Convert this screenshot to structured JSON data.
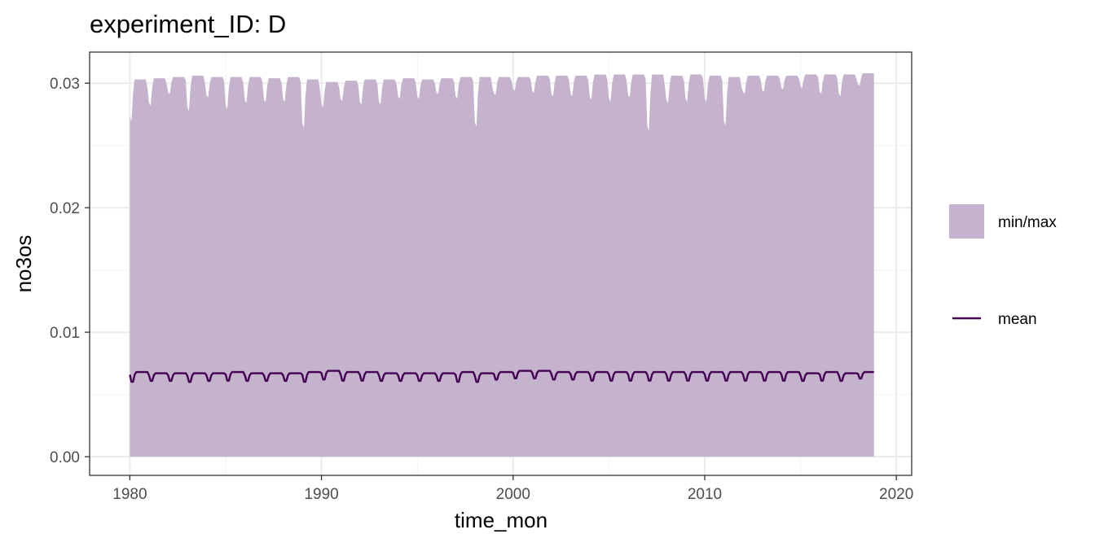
{
  "chart_data": {
    "type": "area",
    "title": "experiment_ID: D",
    "xlabel": "time_mon",
    "ylabel": "no3os",
    "xlim": [
      1977.9,
      2020.8
    ],
    "ylim": [
      -0.0015,
      0.0325
    ],
    "x_ticks": [
      1980,
      1990,
      2000,
      2010,
      2020
    ],
    "x_tick_labels": [
      "1980",
      "1990",
      "2000",
      "2010",
      "2020"
    ],
    "y_ticks": [
      0.0,
      0.01,
      0.02,
      0.03
    ],
    "y_tick_labels": [
      "0.00",
      "0.01",
      "0.02",
      "0.03"
    ],
    "grid": true,
    "legend_position": "right",
    "x_start": 1980.0,
    "x_end": 2018.9,
    "series": [
      {
        "name": "min/max",
        "kind": "ribbon",
        "color": "#c5b2cd",
        "ymin": 0.0,
        "ymax_annual": [
          [
            1980,
            0.0303,
            0.0266
          ],
          [
            1981,
            0.0304,
            0.028
          ],
          [
            1982,
            0.0305,
            0.029
          ],
          [
            1983,
            0.0306,
            0.0275
          ],
          [
            1984,
            0.0305,
            0.0287
          ],
          [
            1985,
            0.0305,
            0.0277
          ],
          [
            1986,
            0.0305,
            0.0282
          ],
          [
            1987,
            0.0304,
            0.0283
          ],
          [
            1988,
            0.0305,
            0.0283
          ],
          [
            1989,
            0.0303,
            0.026
          ],
          [
            1990,
            0.0301,
            0.0279
          ],
          [
            1991,
            0.0302,
            0.0284
          ],
          [
            1992,
            0.0303,
            0.0281
          ],
          [
            1993,
            0.0303,
            0.0281
          ],
          [
            1994,
            0.0304,
            0.0286
          ],
          [
            1995,
            0.0303,
            0.0286
          ],
          [
            1996,
            0.0304,
            0.029
          ],
          [
            1997,
            0.0305,
            0.0286
          ],
          [
            1998,
            0.0305,
            0.0261
          ],
          [
            1999,
            0.0305,
            0.0289
          ],
          [
            2000,
            0.0305,
            0.0293
          ],
          [
            2001,
            0.0306,
            0.0291
          ],
          [
            2002,
            0.0306,
            0.0288
          ],
          [
            2003,
            0.0306,
            0.0288
          ],
          [
            2004,
            0.0307,
            0.0285
          ],
          [
            2005,
            0.0307,
            0.0283
          ],
          [
            2006,
            0.0307,
            0.0287
          ],
          [
            2007,
            0.0307,
            0.0257
          ],
          [
            2008,
            0.0306,
            0.0282
          ],
          [
            2009,
            0.0307,
            0.0283
          ],
          [
            2010,
            0.0306,
            0.0283
          ],
          [
            2011,
            0.0305,
            0.0262
          ],
          [
            2012,
            0.0306,
            0.029
          ],
          [
            2013,
            0.0306,
            0.0292
          ],
          [
            2014,
            0.0306,
            0.0294
          ],
          [
            2015,
            0.0307,
            0.0295
          ],
          [
            2016,
            0.0307,
            0.029
          ],
          [
            2017,
            0.0307,
            0.0288
          ],
          [
            2018,
            0.0308,
            0.0297
          ]
        ]
      },
      {
        "name": "mean",
        "kind": "line",
        "color": "#440154",
        "mean_annual": [
          [
            1980,
            0.0068,
            0.0059
          ],
          [
            1981,
            0.0067,
            0.006
          ],
          [
            1982,
            0.0067,
            0.006
          ],
          [
            1983,
            0.0067,
            0.0059
          ],
          [
            1984,
            0.0067,
            0.006
          ],
          [
            1985,
            0.0068,
            0.006
          ],
          [
            1986,
            0.0067,
            0.006
          ],
          [
            1987,
            0.0067,
            0.006
          ],
          [
            1988,
            0.0067,
            0.006
          ],
          [
            1989,
            0.0068,
            0.0059
          ],
          [
            1990,
            0.0069,
            0.0061
          ],
          [
            1991,
            0.0068,
            0.006
          ],
          [
            1992,
            0.0068,
            0.006
          ],
          [
            1993,
            0.0067,
            0.006
          ],
          [
            1994,
            0.0067,
            0.006
          ],
          [
            1995,
            0.0067,
            0.006
          ],
          [
            1996,
            0.0067,
            0.006
          ],
          [
            1997,
            0.0068,
            0.0059
          ],
          [
            1998,
            0.0067,
            0.0059
          ],
          [
            1999,
            0.0068,
            0.0061
          ],
          [
            2000,
            0.0069,
            0.0062
          ],
          [
            2001,
            0.0069,
            0.0062
          ],
          [
            2002,
            0.0068,
            0.0061
          ],
          [
            2003,
            0.0068,
            0.0061
          ],
          [
            2004,
            0.0068,
            0.006
          ],
          [
            2005,
            0.0068,
            0.006
          ],
          [
            2006,
            0.0068,
            0.006
          ],
          [
            2007,
            0.0068,
            0.006
          ],
          [
            2008,
            0.0068,
            0.006
          ],
          [
            2009,
            0.0068,
            0.006
          ],
          [
            2010,
            0.0068,
            0.006
          ],
          [
            2011,
            0.0068,
            0.006
          ],
          [
            2012,
            0.0068,
            0.006
          ],
          [
            2013,
            0.0068,
            0.006
          ],
          [
            2014,
            0.0068,
            0.006
          ],
          [
            2015,
            0.0067,
            0.006
          ],
          [
            2016,
            0.0068,
            0.006
          ],
          [
            2017,
            0.0067,
            0.006
          ],
          [
            2018,
            0.0068,
            0.0062
          ]
        ]
      }
    ],
    "legend": [
      {
        "label": "min/max",
        "symbol": "box",
        "color": "#c5b2cd"
      },
      {
        "label": "mean",
        "symbol": "line",
        "color": "#440154"
      }
    ]
  },
  "style": {
    "panel_background": "#ffffff",
    "panel_border": "#333333",
    "grid_major": "#ebebeb",
    "grid_minor": "#f3f3f3"
  }
}
